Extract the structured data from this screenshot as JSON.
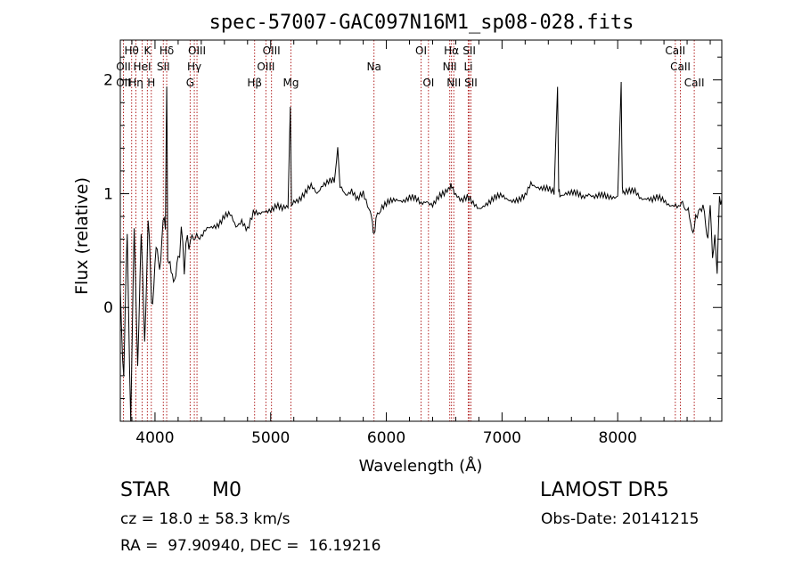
{
  "chart_data": {
    "type": "line",
    "title": "spec-57007-GAC097N16M1_sp08-028.fits",
    "xlabel": "Wavelength (Å)",
    "ylabel": "Flux (relative)",
    "xlim": [
      3700,
      8900
    ],
    "ylim": [
      -1.0,
      2.35
    ],
    "xticks": [
      4000,
      5000,
      6000,
      7000,
      8000
    ],
    "yticks": [
      0,
      1,
      2
    ],
    "grid": false,
    "series": [
      {
        "x": [
          3700,
          3730,
          3760,
          3790,
          3820,
          3850,
          3880,
          3910,
          3940,
          3970,
          4000,
          4030,
          4060,
          4090,
          4101,
          4110,
          4140,
          4170,
          4200,
          4240,
          4280,
          4320,
          4360,
          4400,
          4450,
          4500,
          4550,
          4600,
          4650,
          4700,
          4750,
          4800,
          4850,
          4900,
          4950,
          5000,
          5050,
          5100,
          5150,
          5170,
          5180,
          5200,
          5250,
          5300,
          5350,
          5400,
          5450,
          5500,
          5550,
          5580,
          5600,
          5650,
          5700,
          5750,
          5800,
          5850,
          5880,
          5893,
          5910,
          5950,
          6000,
          6050,
          6100,
          6150,
          6200,
          6250,
          6300,
          6350,
          6400,
          6450,
          6500,
          6550,
          6565,
          6600,
          6650,
          6700,
          6750,
          6800,
          6850,
          6900,
          6950,
          7000,
          7050,
          7100,
          7150,
          7200,
          7250,
          7300,
          7350,
          7400,
          7450,
          7480,
          7490,
          7500,
          7550,
          7600,
          7650,
          7700,
          7750,
          7800,
          7850,
          7900,
          7950,
          8000,
          8030,
          8040,
          8050,
          8100,
          8150,
          8200,
          8250,
          8300,
          8350,
          8400,
          8450,
          8500,
          8540,
          8560,
          8600,
          8620,
          8662,
          8700,
          8750,
          8780,
          8800,
          8820,
          8840,
          8860,
          8880,
          8900
        ],
        "values": [
          0.2,
          -0.4,
          0.5,
          -0.9,
          0.4,
          -0.5,
          0.3,
          -0.3,
          0.5,
          0.1,
          0.3,
          0.55,
          0.7,
          0.85,
          2.1,
          0.75,
          0.3,
          0.55,
          0.35,
          0.7,
          0.5,
          0.6,
          0.65,
          0.6,
          0.68,
          0.72,
          0.75,
          0.8,
          0.8,
          0.7,
          0.78,
          0.7,
          0.82,
          0.8,
          0.85,
          0.88,
          0.9,
          0.85,
          0.87,
          1.75,
          0.9,
          0.95,
          0.97,
          1.0,
          1.05,
          1.0,
          1.1,
          1.12,
          1.1,
          1.45,
          1.05,
          1.0,
          1.05,
          0.95,
          0.98,
          0.85,
          0.75,
          0.62,
          0.8,
          0.88,
          0.9,
          0.92,
          0.95,
          0.96,
          0.97,
          0.94,
          0.9,
          0.95,
          0.92,
          0.96,
          0.98,
          1.05,
          1.08,
          1.02,
          0.95,
          0.95,
          0.9,
          0.88,
          0.92,
          0.93,
          0.95,
          0.98,
          0.97,
          0.95,
          0.93,
          0.96,
          1.1,
          1.08,
          1.05,
          1.02,
          1.0,
          1.96,
          1.05,
          1.0,
          1.02,
          1.0,
          0.98,
          0.97,
          1.02,
          0.98,
          0.97,
          0.96,
          0.98,
          1.0,
          1.95,
          1.02,
          1.0,
          1.0,
          1.02,
          0.98,
          0.97,
          0.93,
          0.95,
          0.95,
          0.92,
          0.9,
          0.85,
          0.9,
          0.82,
          0.7,
          0.8,
          0.9,
          0.85,
          0.7,
          0.9,
          0.5,
          0.75,
          0.3,
          1.0,
          0.95
        ]
      }
    ],
    "lines": [
      {
        "wavelength": 3727,
        "label": "OII"
      },
      {
        "wavelength": 3798,
        "label": "Hθ"
      },
      {
        "wavelength": 3835,
        "label": "Hη"
      },
      {
        "wavelength": 3889,
        "label": "HeI"
      },
      {
        "wavelength": 3934,
        "label": "K"
      },
      {
        "wavelength": 3968,
        "label": "H"
      },
      {
        "wavelength": 4101,
        "label": "Hδ"
      },
      {
        "wavelength": 4072,
        "label": "SII"
      },
      {
        "wavelength": 4304,
        "label": "G"
      },
      {
        "wavelength": 4340,
        "label": "Hγ"
      },
      {
        "wavelength": 4363,
        "label": "OIII"
      },
      {
        "wavelength": 4861,
        "label": "Hβ"
      },
      {
        "wavelength": 4959,
        "label": "OIII"
      },
      {
        "wavelength": 5007,
        "label": "OIII"
      },
      {
        "wavelength": 5175,
        "label": "Mg"
      },
      {
        "wavelength": 5893,
        "label": "Na"
      },
      {
        "wavelength": 6300,
        "label": "OI"
      },
      {
        "wavelength": 6364,
        "label": "OI"
      },
      {
        "wavelength": 6548,
        "label": "NII"
      },
      {
        "wavelength": 6563,
        "label": "Hα"
      },
      {
        "wavelength": 6583,
        "label": "NII"
      },
      {
        "wavelength": 6708,
        "label": "Li"
      },
      {
        "wavelength": 6717,
        "label": "SII"
      },
      {
        "wavelength": 6731,
        "label": "SII"
      },
      {
        "wavelength": 8498,
        "label": "CaII"
      },
      {
        "wavelength": 8542,
        "label": "CaII"
      },
      {
        "wavelength": 8662,
        "label": "CaII"
      }
    ],
    "line_label_rows": [
      [
        {
          "text": "Hθ",
          "wave": 3798
        },
        {
          "text": "K",
          "wave": 3934
        },
        {
          "text": "Hδ",
          "wave": 4101
        },
        {
          "text": "OIII",
          "wave": 4363
        },
        {
          "text": "OIII",
          "wave": 5007
        },
        {
          "text": "OI",
          "wave": 6300
        },
        {
          "text": "Hα",
          "wave": 6563
        },
        {
          "text": "SII",
          "wave": 6717
        },
        {
          "text": "CaII",
          "wave": 8498
        }
      ],
      [
        {
          "text": "OII",
          "wave": 3727
        },
        {
          "text": "HeI",
          "wave": 3889
        },
        {
          "text": "SII",
          "wave": 4072
        },
        {
          "text": "Hγ",
          "wave": 4340
        },
        {
          "text": "OIII",
          "wave": 4959
        },
        {
          "text": "Na",
          "wave": 5893
        },
        {
          "text": "NII",
          "wave": 6548
        },
        {
          "text": "Li",
          "wave": 6708
        },
        {
          "text": "CaII",
          "wave": 8542
        }
      ],
      [
        {
          "text": "OII",
          "wave": 3727
        },
        {
          "text": "Hη",
          "wave": 3835
        },
        {
          "text": "H",
          "wave": 3968
        },
        {
          "text": "G",
          "wave": 4304
        },
        {
          "text": "Hβ",
          "wave": 4861
        },
        {
          "text": "Mg",
          "wave": 5175
        },
        {
          "text": "OI",
          "wave": 6364
        },
        {
          "text": "NII",
          "wave": 6583
        },
        {
          "text": "SII",
          "wave": 6731
        },
        {
          "text": "CaII",
          "wave": 8662
        }
      ]
    ],
    "colors": {
      "spectrum": "#000000",
      "lines": "#b22222",
      "axes": "#000000"
    }
  },
  "info": {
    "class": "STAR",
    "subclass": "M0",
    "survey": "LAMOST DR5",
    "cz": "cz = 18.0 ± 58.3 km/s",
    "obs_date": "Obs-Date: 20141215",
    "coords": "RA =  97.90940, DEC =  16.19216"
  }
}
